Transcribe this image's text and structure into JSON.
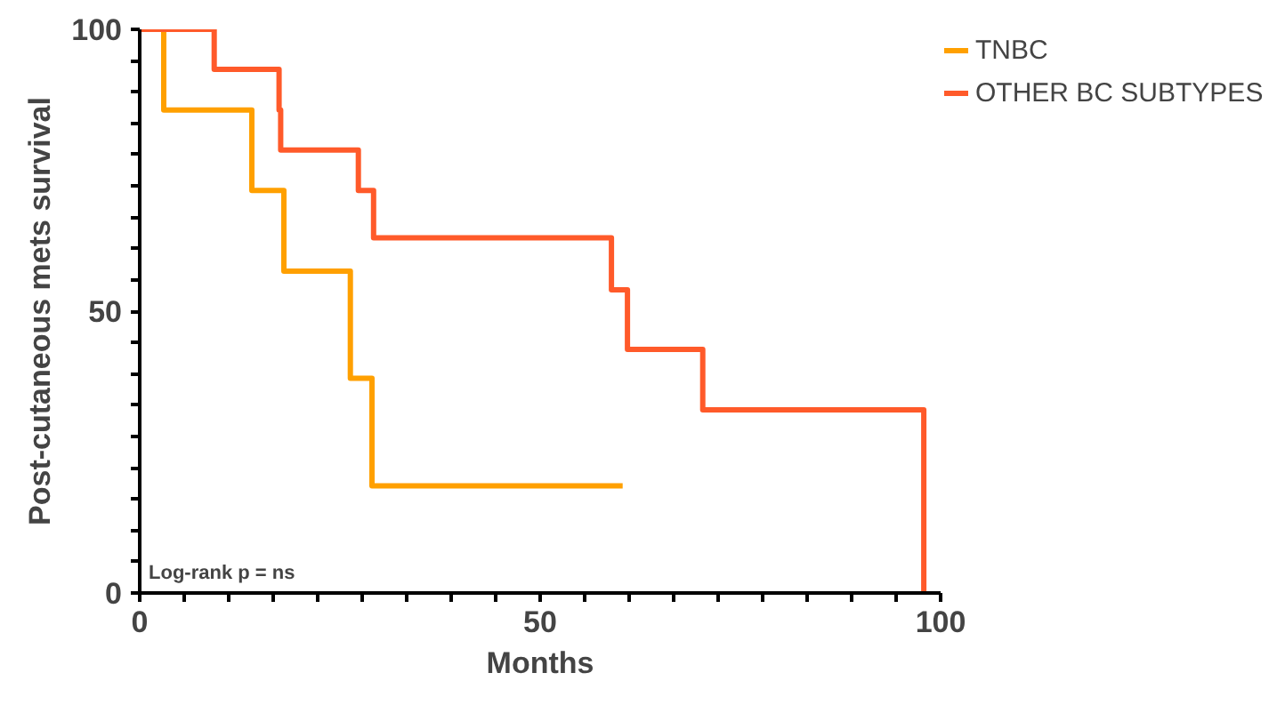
{
  "chart_data": {
    "type": "step",
    "xlabel": "Months",
    "ylabel": "Post-cutaneous mets survival",
    "xlim": [
      0,
      100
    ],
    "ylim": [
      0,
      100
    ],
    "xticks": [
      0,
      {
        "value": 5.6,
        "label": null
      },
      {
        "value": 11.1,
        "label": null
      },
      {
        "value": 16.7,
        "label": null
      },
      {
        "value": 22.2,
        "label": null
      },
      {
        "value": 27.8,
        "label": null
      },
      {
        "value": 33.3,
        "label": null
      },
      {
        "value": 38.9,
        "label": null
      },
      {
        "value": 44.4,
        "label": null
      },
      50,
      {
        "value": 55.6,
        "label": null
      },
      {
        "value": 61.1,
        "label": null
      },
      {
        "value": 66.7,
        "label": null
      },
      {
        "value": 72.2,
        "label": null
      },
      {
        "value": 77.8,
        "label": null
      },
      {
        "value": 83.3,
        "label": null
      },
      {
        "value": 88.9,
        "label": null
      },
      {
        "value": 94.4,
        "label": null
      },
      100
    ],
    "yticks": [
      0,
      {
        "value": 5.6,
        "label": null
      },
      {
        "value": 11.1,
        "label": null
      },
      {
        "value": 16.7,
        "label": null
      },
      {
        "value": 22.2,
        "label": null
      },
      {
        "value": 27.8,
        "label": null
      },
      {
        "value": 33.3,
        "label": null
      },
      {
        "value": 38.9,
        "label": null
      },
      {
        "value": 44.4,
        "label": null
      },
      50,
      {
        "value": 55.6,
        "label": null
      },
      {
        "value": 61.1,
        "label": null
      },
      {
        "value": 66.7,
        "label": null
      },
      {
        "value": 72.2,
        "label": null
      },
      {
        "value": 77.8,
        "label": null
      },
      {
        "value": 83.3,
        "label": null
      },
      {
        "value": 88.9,
        "label": null
      },
      {
        "value": 94.4,
        "label": null
      },
      100
    ],
    "grid": false,
    "legend": "right",
    "line_style": "solid",
    "annotations": [
      "Log-rank p = ns"
    ],
    "series": [
      {
        "name": "TNBC",
        "color": "#ffa000",
        "x": [
          0,
          3,
          14,
          18,
          26.3,
          29,
          60.3
        ],
        "values": [
          100,
          85.7,
          71.4,
          57.1,
          38.1,
          19,
          19
        ]
      },
      {
        "name": "OTHER BC SUBTYPES",
        "color": "#ff5a2a",
        "x": [
          0,
          9.3,
          17.4,
          17.6,
          27.3,
          29.2,
          58.9,
          60.9,
          70.3,
          97.9
        ],
        "values": [
          100,
          92.9,
          85.7,
          78.6,
          71.4,
          63,
          53.8,
          43.2,
          32.5,
          0
        ]
      }
    ]
  }
}
